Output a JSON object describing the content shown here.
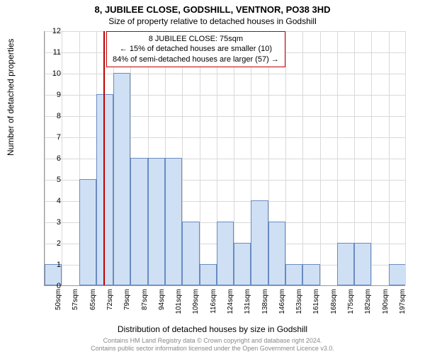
{
  "title_main": "8, JUBILEE CLOSE, GODSHILL, VENTNOR, PO38 3HD",
  "title_sub": "Size of property relative to detached houses in Godshill",
  "callout": {
    "line1": "8 JUBILEE CLOSE: 75sqm",
    "line2": "← 15% of detached houses are smaller (10)",
    "line3": "84% of semi-detached houses are larger (57) →"
  },
  "chart": {
    "type": "histogram",
    "ylabel": "Number of detached properties",
    "xlabel": "Distribution of detached houses by size in Godshill",
    "ylim": [
      0,
      12
    ],
    "ytick_step": 1,
    "x_start": 50,
    "x_step": 7,
    "x_count": 22,
    "x_unit": "sqm",
    "bar_color": "#cfe0f5",
    "bar_border_color": "#6a8bc0",
    "grid_color": "#d9d9d9",
    "marker_value": 75,
    "marker_color": "#c00000",
    "background_color": "#ffffff",
    "title_fontsize": 13,
    "label_fontsize": 12,
    "tick_fontsize": 11,
    "bins": [
      {
        "start": 50,
        "count": 1
      },
      {
        "start": 57,
        "count": 0
      },
      {
        "start": 65,
        "count": 5
      },
      {
        "start": 72,
        "count": 9
      },
      {
        "start": 79,
        "count": 10
      },
      {
        "start": 87,
        "count": 6
      },
      {
        "start": 94,
        "count": 6
      },
      {
        "start": 101,
        "count": 6
      },
      {
        "start": 109,
        "count": 3
      },
      {
        "start": 116,
        "count": 1
      },
      {
        "start": 124,
        "count": 3
      },
      {
        "start": 131,
        "count": 2
      },
      {
        "start": 138,
        "count": 4
      },
      {
        "start": 146,
        "count": 3
      },
      {
        "start": 153,
        "count": 1
      },
      {
        "start": 161,
        "count": 1
      },
      {
        "start": 168,
        "count": 0
      },
      {
        "start": 175,
        "count": 2
      },
      {
        "start": 182,
        "count": 2
      },
      {
        "start": 190,
        "count": 0
      },
      {
        "start": 197,
        "count": 1
      }
    ]
  },
  "footer": {
    "line1": "Contains HM Land Registry data © Crown copyright and database right 2024.",
    "line2": "Contains public sector information licensed under the Open Government Licence v3.0."
  }
}
